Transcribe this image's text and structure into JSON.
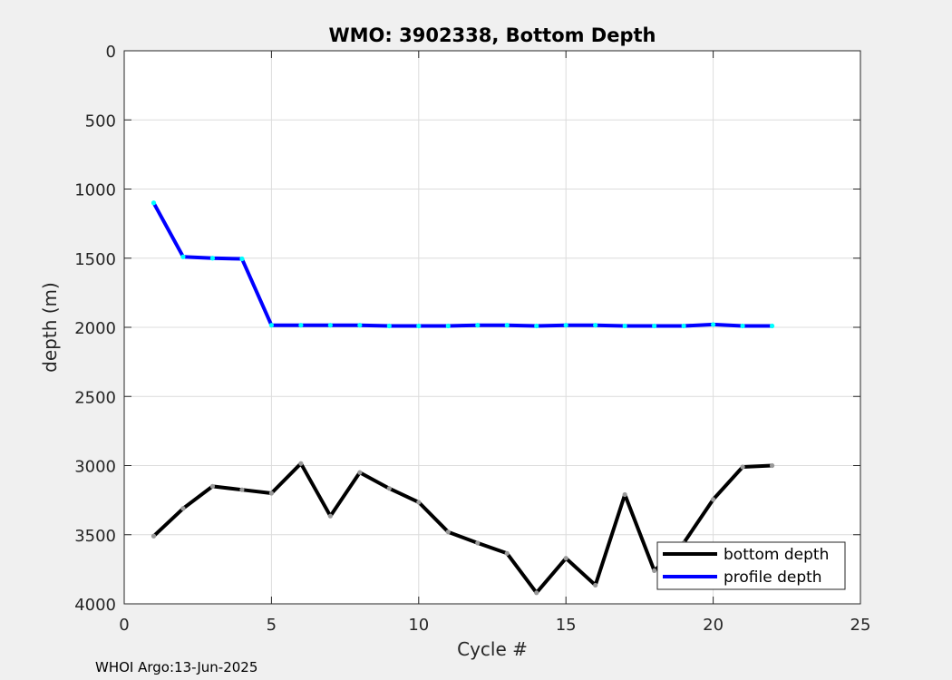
{
  "chart_data": {
    "type": "line",
    "title": "WMO: 3902338, Bottom Depth",
    "xlabel": "Cycle #",
    "ylabel": "depth (m)",
    "xlim": [
      0,
      25
    ],
    "ylim": [
      0,
      4000
    ],
    "y_reversed": true,
    "xticks": [
      0,
      5,
      10,
      15,
      20,
      25
    ],
    "yticks": [
      0,
      500,
      1000,
      1500,
      2000,
      2500,
      3000,
      3500,
      4000
    ],
    "grid": true,
    "legend_position": "bottom-right",
    "series": [
      {
        "name": "bottom depth",
        "color": "#000000",
        "marker_color": "#999999",
        "x": [
          1,
          2,
          3,
          4,
          5,
          6,
          7,
          8,
          9,
          10,
          11,
          12,
          13,
          14,
          15,
          16,
          17,
          18,
          19,
          20,
          21,
          22
        ],
        "y": [
          3510,
          3310,
          3150,
          3175,
          3200,
          2985,
          3365,
          3050,
          3165,
          3265,
          3480,
          3560,
          3635,
          3920,
          3670,
          3865,
          3210,
          3760,
          3560,
          3245,
          3010,
          3000
        ]
      },
      {
        "name": "profile depth",
        "color": "#0000ff",
        "marker_color": "#00ffff",
        "x": [
          1,
          2,
          3,
          4,
          5,
          6,
          7,
          8,
          9,
          10,
          11,
          12,
          13,
          14,
          15,
          16,
          17,
          18,
          19,
          20,
          21,
          22
        ],
        "y": [
          1100,
          1490,
          1500,
          1505,
          1985,
          1985,
          1985,
          1985,
          1990,
          1990,
          1990,
          1985,
          1985,
          1990,
          1985,
          1985,
          1990,
          1990,
          1990,
          1980,
          1990,
          1990
        ]
      }
    ]
  },
  "footer": {
    "credit": "WHOI Argo:13-Jun-2025"
  }
}
